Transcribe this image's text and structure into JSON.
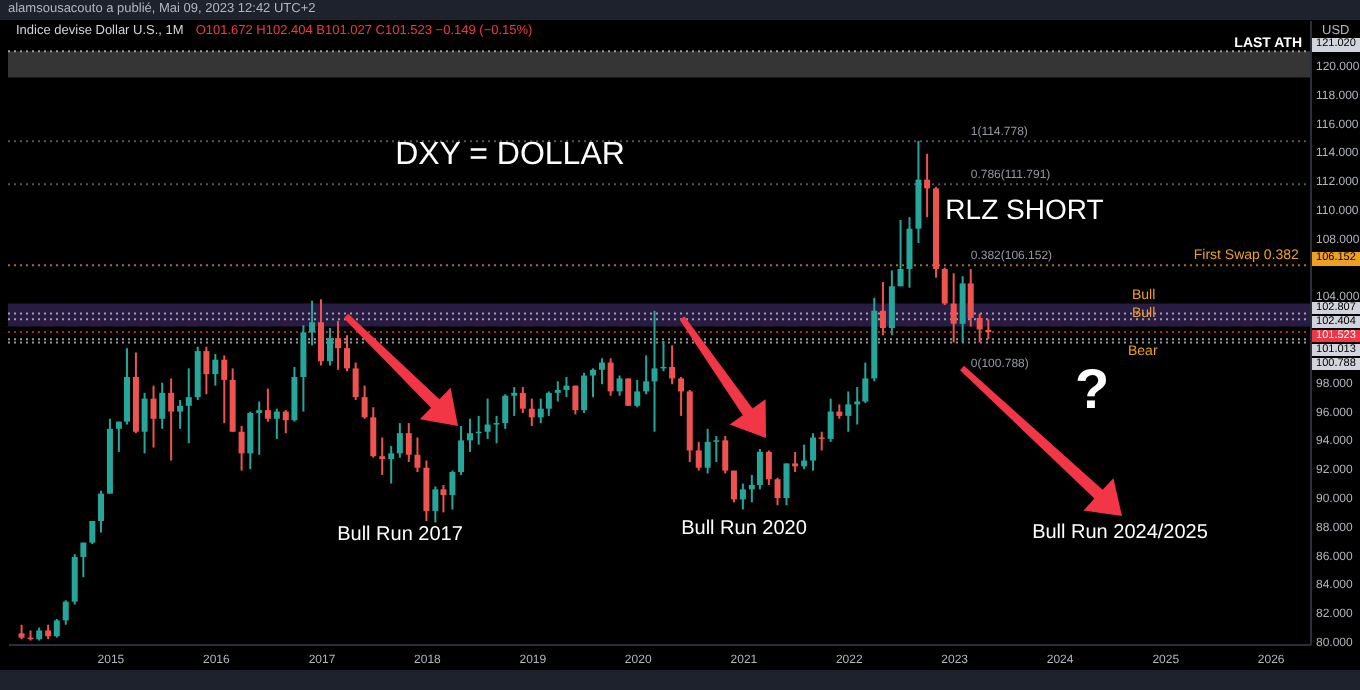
{
  "chart_data": {
    "type": "candlestick",
    "title": "Indice devise Dollar U.S., 1M",
    "subtitle": "O101.672 H102.404 B101.027 C101.523 −0.149 (−0.15%)",
    "ylabel": "USD",
    "annotations": [
      "alamsousacouto a publié, Mai 09, 2023 12:42 UTC+2",
      "DXY = DOLLAR",
      {
        "text": "RLZ SHORT",
        "x": "2022-09",
        "y": 114.8
      },
      "Bull Run 2017",
      "Bull Run 2020",
      "Bull Run 2024/2025",
      "?",
      {
        "text": "First Swap 0.382",
        "x": "2026-05",
        "y": 106.152
      },
      "Bull",
      "Bull",
      "Bear",
      {
        "text": "1(114.778)",
        "x": "2023-03",
        "y": 114.778
      },
      {
        "text": "0.786(111.791)",
        "x": "2023-03",
        "y": 111.791
      },
      {
        "text": "0.382(106.152)",
        "x": "2023-03",
        "y": 106.152
      },
      {
        "text": "0(100.788)",
        "x": "2023-03",
        "y": 100.788
      }
    ],
    "x": [
      "2014-03",
      "2014-04",
      "2014-05",
      "2014-06",
      "2014-07",
      "2014-08",
      "2014-09",
      "2014-10",
      "2014-11",
      "2014-12",
      "2015-01",
      "2015-02",
      "2015-03",
      "2015-04",
      "2015-05",
      "2015-06",
      "2015-07",
      "2015-08",
      "2015-09",
      "2015-10",
      "2015-11",
      "2015-12",
      "2016-01",
      "2016-02",
      "2016-03",
      "2016-04",
      "2016-05",
      "2016-06",
      "2016-07",
      "2016-08",
      "2016-09",
      "2016-10",
      "2016-11",
      "2016-12",
      "2017-01",
      "2017-02",
      "2017-03",
      "2017-04",
      "2017-05",
      "2017-06",
      "2017-07",
      "2017-08",
      "2017-09",
      "2017-10",
      "2017-11",
      "2017-12",
      "2018-01",
      "2018-02",
      "2018-03",
      "2018-04",
      "2018-05",
      "2018-06",
      "2018-07",
      "2018-08",
      "2018-09",
      "2018-10",
      "2018-11",
      "2018-12",
      "2019-01",
      "2019-02",
      "2019-03",
      "2019-04",
      "2019-05",
      "2019-06",
      "2019-07",
      "2019-08",
      "2019-09",
      "2019-10",
      "2019-11",
      "2019-12",
      "2020-01",
      "2020-02",
      "2020-03",
      "2020-04",
      "2020-05",
      "2020-06",
      "2020-07",
      "2020-08",
      "2020-09",
      "2020-10",
      "2020-11",
      "2020-12",
      "2021-01",
      "2021-02",
      "2021-03",
      "2021-04",
      "2021-05",
      "2021-06",
      "2021-07",
      "2021-08",
      "2021-09",
      "2021-10",
      "2021-11",
      "2021-12",
      "2022-01",
      "2022-02",
      "2022-03",
      "2022-04",
      "2022-05",
      "2022-06",
      "2022-07",
      "2022-08",
      "2022-09",
      "2022-10",
      "2022-11",
      "2022-12",
      "2023-01",
      "2023-02",
      "2023-03",
      "2023-04",
      "2023-05"
    ],
    "ohlc": [
      [
        80.6,
        81.2,
        80.2,
        80.3
      ],
      [
        80.3,
        80.8,
        80.1,
        80.2
      ],
      [
        80.2,
        81.0,
        80.1,
        80.8
      ],
      [
        80.8,
        81.2,
        80.2,
        80.4
      ],
      [
        80.4,
        81.6,
        80.3,
        81.5
      ],
      [
        81.5,
        82.9,
        81.2,
        82.8
      ],
      [
        82.8,
        86.1,
        82.6,
        85.9
      ],
      [
        85.9,
        86.9,
        84.5,
        86.9
      ],
      [
        86.9,
        88.4,
        86.8,
        88.4
      ],
      [
        88.4,
        90.5,
        87.6,
        90.3
      ],
      [
        90.3,
        95.5,
        90.3,
        94.8
      ],
      [
        94.8,
        95.3,
        93.2,
        95.3
      ],
      [
        95.3,
        100.4,
        95.1,
        98.4
      ],
      [
        98.4,
        100.1,
        94.5,
        94.6
      ],
      [
        94.6,
        97.3,
        93.1,
        96.9
      ],
      [
        96.9,
        97.8,
        93.5,
        95.5
      ],
      [
        95.5,
        98.0,
        94.8,
        97.3
      ],
      [
        97.3,
        98.3,
        92.6,
        96.0
      ],
      [
        96.0,
        96.8,
        94.8,
        96.4
      ],
      [
        96.4,
        99.0,
        93.8,
        97.0
      ],
      [
        97.0,
        100.5,
        96.8,
        100.2
      ],
      [
        100.2,
        100.5,
        97.2,
        98.6
      ],
      [
        98.6,
        100.0,
        97.8,
        99.6
      ],
      [
        99.6,
        99.9,
        95.2,
        98.2
      ],
      [
        98.2,
        99.0,
        94.6,
        94.6
      ],
      [
        94.6,
        95.0,
        91.9,
        93.1
      ],
      [
        93.1,
        96.0,
        92.0,
        95.9
      ],
      [
        95.9,
        96.7,
        93.0,
        96.1
      ],
      [
        96.1,
        97.6,
        95.3,
        95.5
      ],
      [
        95.5,
        96.2,
        94.1,
        96.0
      ],
      [
        96.0,
        96.1,
        94.5,
        95.4
      ],
      [
        95.4,
        99.1,
        95.3,
        98.4
      ],
      [
        98.4,
        102.0,
        96.0,
        101.5
      ],
      [
        101.5,
        103.7,
        100.6,
        102.2
      ],
      [
        102.2,
        103.8,
        99.2,
        99.5
      ],
      [
        99.5,
        101.8,
        99.2,
        101.1
      ],
      [
        101.1,
        102.3,
        98.9,
        100.4
      ],
      [
        100.4,
        101.3,
        98.8,
        99.0
      ],
      [
        99.0,
        99.4,
        96.8,
        97.0
      ],
      [
        97.0,
        97.8,
        95.5,
        95.6
      ],
      [
        95.6,
        96.3,
        92.8,
        92.9
      ],
      [
        92.9,
        94.2,
        91.6,
        92.7
      ],
      [
        92.7,
        93.6,
        91.0,
        93.1
      ],
      [
        93.1,
        95.2,
        92.8,
        94.5
      ],
      [
        94.5,
        95.2,
        92.5,
        93.0
      ],
      [
        93.0,
        94.2,
        91.8,
        92.1
      ],
      [
        92.1,
        92.6,
        88.4,
        89.1
      ],
      [
        89.1,
        90.8,
        88.3,
        90.6
      ],
      [
        90.6,
        90.9,
        89.0,
        90.2
      ],
      [
        90.2,
        91.9,
        89.2,
        91.8
      ],
      [
        91.8,
        95.0,
        91.6,
        94.0
      ],
      [
        94.0,
        95.5,
        93.2,
        94.5
      ],
      [
        94.5,
        95.7,
        93.7,
        94.6
      ],
      [
        94.6,
        96.9,
        94.1,
        95.1
      ],
      [
        95.1,
        95.7,
        93.8,
        95.2
      ],
      [
        95.2,
        97.2,
        94.8,
        97.1
      ],
      [
        97.1,
        97.7,
        95.7,
        97.3
      ],
      [
        97.3,
        97.7,
        95.9,
        96.2
      ],
      [
        96.2,
        96.9,
        95.0,
        95.6
      ],
      [
        95.6,
        96.9,
        95.2,
        96.2
      ],
      [
        96.2,
        97.4,
        95.7,
        97.3
      ],
      [
        97.3,
        98.1,
        96.7,
        97.5
      ],
      [
        97.5,
        98.4,
        97.0,
        97.8
      ],
      [
        97.8,
        97.8,
        95.8,
        96.1
      ],
      [
        96.1,
        98.7,
        95.9,
        98.5
      ],
      [
        98.5,
        99.0,
        97.0,
        98.9
      ],
      [
        98.9,
        99.7,
        97.9,
        99.4
      ],
      [
        99.4,
        99.7,
        97.1,
        97.4
      ],
      [
        97.4,
        98.5,
        97.1,
        98.3
      ],
      [
        98.3,
        98.3,
        96.4,
        96.4
      ],
      [
        96.4,
        98.2,
        96.3,
        97.4
      ],
      [
        97.4,
        99.9,
        97.2,
        98.1
      ],
      [
        98.1,
        103.0,
        94.6,
        99.0
      ],
      [
        99.0,
        100.9,
        98.8,
        99.1
      ],
      [
        99.1,
        100.6,
        97.9,
        98.3
      ],
      [
        98.3,
        98.4,
        95.7,
        97.4
      ],
      [
        97.4,
        97.5,
        92.5,
        93.3
      ],
      [
        93.3,
        93.9,
        91.9,
        92.1
      ],
      [
        92.1,
        94.8,
        91.7,
        93.9
      ],
      [
        93.9,
        94.3,
        92.5,
        94.0
      ],
      [
        94.0,
        94.3,
        91.7,
        91.9
      ],
      [
        91.9,
        91.9,
        89.7,
        89.9
      ],
      [
        89.9,
        91.0,
        89.2,
        90.6
      ],
      [
        90.6,
        91.6,
        89.7,
        90.9
      ],
      [
        90.9,
        93.4,
        90.6,
        93.2
      ],
      [
        93.2,
        93.3,
        90.9,
        91.3
      ],
      [
        91.3,
        91.4,
        89.5,
        90.0
      ],
      [
        90.0,
        92.4,
        89.5,
        92.4
      ],
      [
        92.4,
        93.2,
        91.8,
        92.2
      ],
      [
        92.2,
        93.7,
        92.0,
        92.6
      ],
      [
        92.6,
        94.5,
        91.9,
        94.2
      ],
      [
        94.2,
        94.6,
        93.3,
        94.1
      ],
      [
        94.1,
        96.9,
        93.9,
        96.0
      ],
      [
        96.0,
        96.5,
        95.5,
        95.7
      ],
      [
        95.7,
        97.4,
        94.6,
        96.5
      ],
      [
        96.5,
        97.7,
        95.1,
        96.7
      ],
      [
        96.7,
        99.4,
        96.6,
        98.3
      ],
      [
        98.3,
        103.9,
        98.1,
        103.0
      ],
      [
        103.0,
        105.0,
        101.3,
        101.8
      ],
      [
        101.8,
        105.8,
        101.3,
        104.7
      ],
      [
        104.7,
        109.3,
        104.7,
        105.9
      ],
      [
        105.9,
        109.5,
        104.6,
        108.7
      ],
      [
        108.7,
        114.8,
        107.7,
        112.1
      ],
      [
        112.1,
        113.9,
        109.5,
        111.5
      ],
      [
        111.5,
        111.6,
        105.3,
        105.9
      ],
      [
        105.9,
        106.0,
        103.4,
        103.5
      ],
      [
        103.5,
        105.6,
        100.8,
        102.1
      ],
      [
        102.1,
        105.4,
        100.8,
        104.9
      ],
      [
        104.9,
        105.9,
        101.9,
        102.5
      ],
      [
        102.5,
        102.8,
        100.8,
        101.7
      ],
      [
        101.672,
        102.404,
        101.027,
        101.523
      ]
    ],
    "colors": [
      "#ef5350",
      "#ef5350",
      "#26a69a",
      "#ef5350",
      "#26a69a",
      "#26a69a",
      "#26a69a",
      "#26a69a",
      "#26a69a",
      "#26a69a",
      "#26a69a",
      "#26a69a",
      "#26a69a",
      "#ef5350",
      "#26a69a",
      "#ef5350",
      "#26a69a",
      "#ef5350",
      "#26a69a",
      "#26a69a",
      "#26a69a",
      "#ef5350",
      "#26a69a",
      "#ef5350",
      "#ef5350",
      "#ef5350",
      "#26a69a",
      "#26a69a",
      "#ef5350",
      "#26a69a",
      "#ef5350",
      "#26a69a",
      "#26a69a",
      "#26a69a",
      "#ef5350",
      "#26a69a",
      "#ef5350",
      "#ef5350",
      "#ef5350",
      "#ef5350",
      "#ef5350",
      "#ef5350",
      "#26a69a",
      "#26a69a",
      "#ef5350",
      "#ef5350",
      "#ef5350",
      "#26a69a",
      "#ef5350",
      "#26a69a",
      "#26a69a",
      "#26a69a",
      "#26a69a",
      "#26a69a",
      "#26a69a",
      "#26a69a",
      "#26a69a",
      "#ef5350",
      "#ef5350",
      "#26a69a",
      "#26a69a",
      "#26a69a",
      "#26a69a",
      "#ef5350",
      "#26a69a",
      "#26a69a",
      "#26a69a",
      "#ef5350",
      "#26a69a",
      "#ef5350",
      "#26a69a",
      "#26a69a",
      "#26a69a",
      "#26a69a",
      "#ef5350",
      "#ef5350",
      "#ef5350",
      "#ef5350",
      "#26a69a",
      "#26a69a",
      "#ef5350",
      "#ef5350",
      "#26a69a",
      "#26a69a",
      "#26a69a",
      "#ef5350",
      "#ef5350",
      "#26a69a",
      "#ef5350",
      "#26a69a",
      "#26a69a",
      "#ef5350",
      "#26a69a",
      "#ef5350",
      "#26a69a",
      "#26a69a",
      "#26a69a",
      "#26a69a",
      "#ef5350",
      "#26a69a",
      "#26a69a",
      "#26a69a",
      "#26a69a",
      "#ef5350",
      "#ef5350",
      "#ef5350",
      "#ef5350",
      "#26a69a",
      "#ef5350",
      "#ef5350",
      "#ef5350"
    ],
    "xlim": [
      "2014-01-13",
      "2026-05-19"
    ],
    "xticks": [
      "2015",
      "2016",
      "2017",
      "2018",
      "2019",
      "2020",
      "2021",
      "2022",
      "2023",
      "2024",
      "2025",
      "2026"
    ],
    "ylim": [
      79.86,
      123.19
    ],
    "yticks": [
      {
        "value": 80,
        "label": "80.000"
      },
      {
        "value": 82,
        "label": "82.000"
      },
      {
        "value": 84,
        "label": "84.000"
      },
      {
        "value": 86,
        "label": "86.000"
      },
      {
        "value": 88,
        "label": "88.000"
      },
      {
        "value": 90,
        "label": "90.000"
      },
      {
        "value": 92,
        "label": "92.000"
      },
      {
        "value": 94,
        "label": "94.000"
      },
      {
        "value": 96,
        "label": "96.000"
      },
      {
        "value": 98,
        "label": "98.000"
      },
      {
        "value": 104,
        "label": "104.000"
      },
      {
        "value": 108,
        "label": "108.000"
      },
      {
        "value": 110,
        "label": "110.000"
      },
      {
        "value": 112,
        "label": "112.000"
      },
      {
        "value": 114,
        "label": "114.000"
      },
      {
        "value": 116,
        "label": "116.000"
      },
      {
        "value": 118,
        "label": "118.000"
      },
      {
        "value": 120,
        "label": "120.000"
      }
    ],
    "bands": [
      {
        "axis": "y",
        "from": 119.2,
        "to": 121.02,
        "label": "LAST ATH",
        "color": "#3b3b3b"
      },
      {
        "axis": "y",
        "from": 101.9,
        "to": 103.5,
        "color": "#2c1f4a"
      }
    ],
    "ref_lines": [
      {
        "axis": "y",
        "value": 121.02,
        "label": "121.020",
        "color": "#d1d4dc",
        "line_style": "dotted"
      },
      {
        "axis": "y",
        "value": 114.778,
        "color": "#787b86",
        "line_style": "dotted"
      },
      {
        "axis": "y",
        "value": 111.791,
        "color": "#787b86",
        "line_style": "dotted"
      },
      {
        "axis": "y",
        "value": 106.152,
        "label": "106.152",
        "color": "#f0a020",
        "line_style": "dotted"
      },
      {
        "axis": "y",
        "value": 102.807,
        "label": "102.807",
        "color": "#d1d4dc",
        "line_style": "dotted"
      },
      {
        "axis": "y",
        "value": 102.404,
        "label": "102.404",
        "color": "#d1d4dc",
        "line_style": "dotted"
      },
      {
        "axis": "y",
        "value": 101.523,
        "label": "101.523",
        "color": "#f23645",
        "line_style": "dotted"
      },
      {
        "axis": "y",
        "value": 101.013,
        "label": "101.013",
        "color": "#d1d4dc",
        "line_style": "dotted"
      },
      {
        "axis": "y",
        "value": 100.788,
        "label": "100.788",
        "color": "#d1d4dc",
        "line_style": "dotted"
      }
    ]
  }
}
